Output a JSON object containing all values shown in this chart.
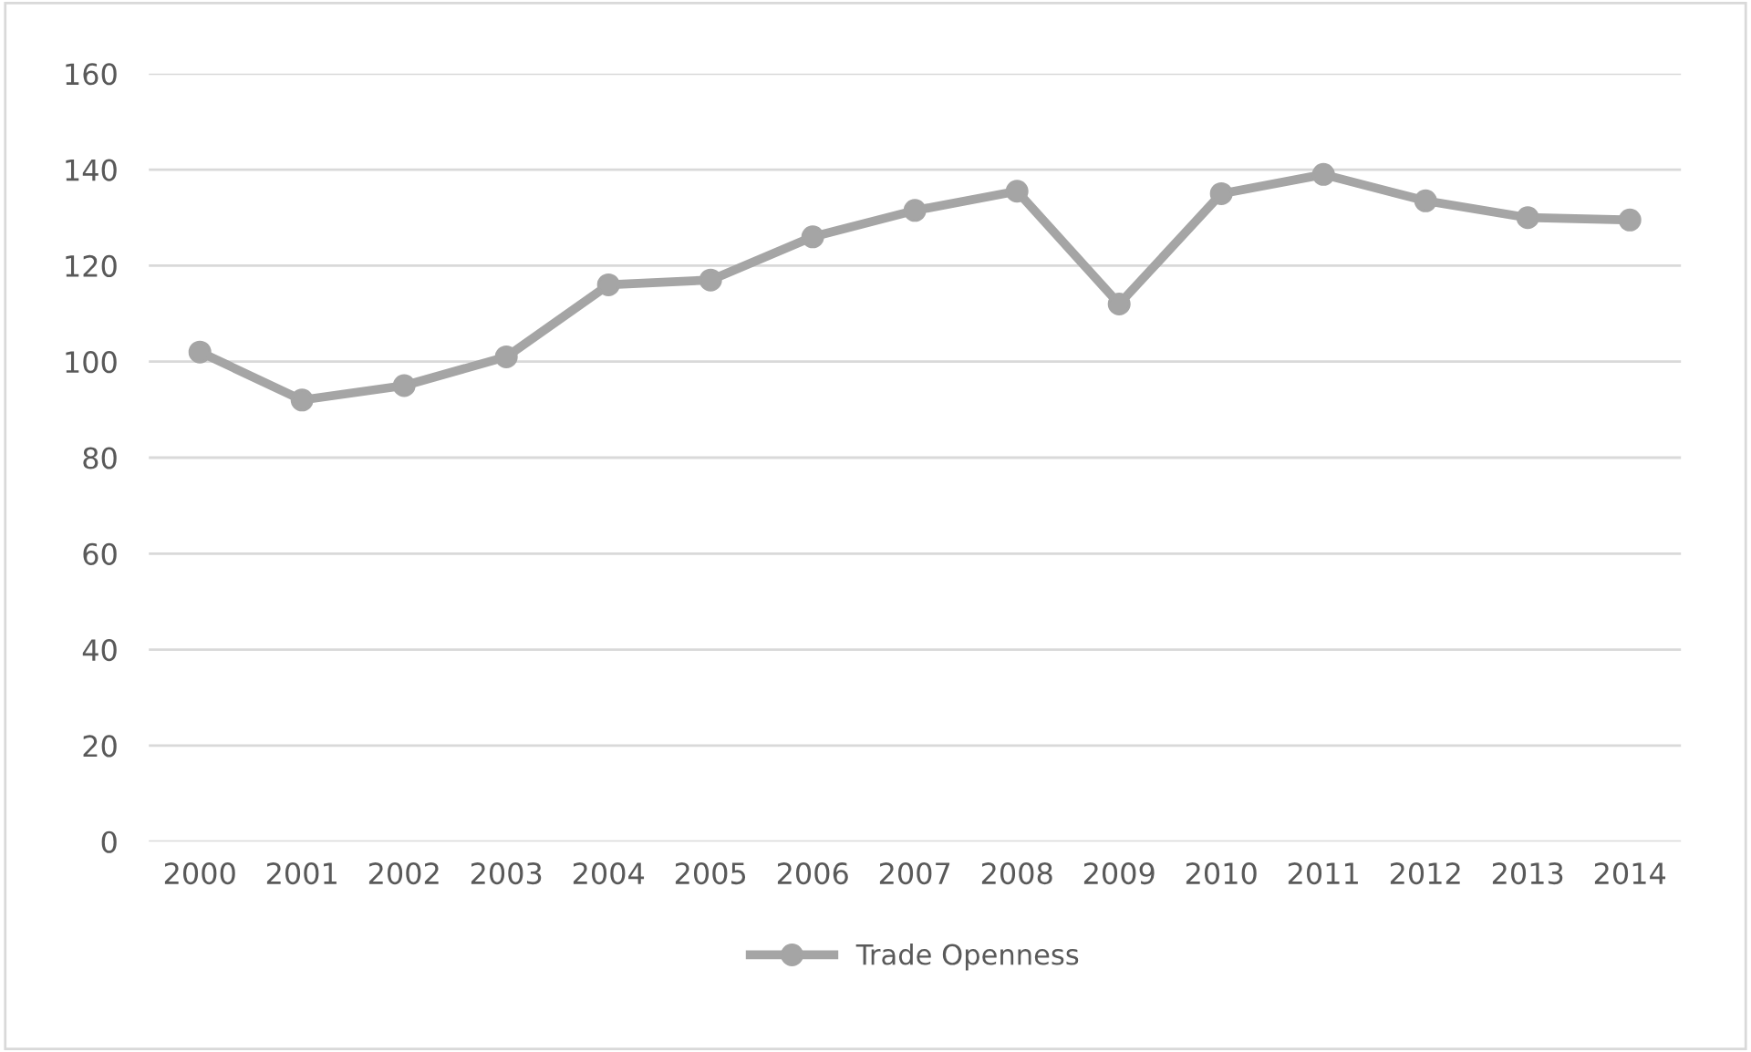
{
  "chart_data": {
    "type": "line",
    "categories": [
      "2000",
      "2001",
      "2002",
      "2003",
      "2004",
      "2005",
      "2006",
      "2007",
      "2008",
      "2009",
      "2010",
      "2011",
      "2012",
      "2013",
      "2014"
    ],
    "series": [
      {
        "name": "Trade Openness",
        "color": "#a5a5a5",
        "values": [
          102,
          92,
          95,
          101,
          116,
          117,
          126,
          131.5,
          135.5,
          112,
          135,
          139,
          133.5,
          130,
          129.5
        ]
      }
    ],
    "ylim": [
      0,
      160
    ],
    "yticks": [
      0,
      20,
      40,
      60,
      80,
      100,
      120,
      140,
      160
    ],
    "grid": "y",
    "legend": "bottom",
    "marker": "circle",
    "line_style": "solid"
  }
}
